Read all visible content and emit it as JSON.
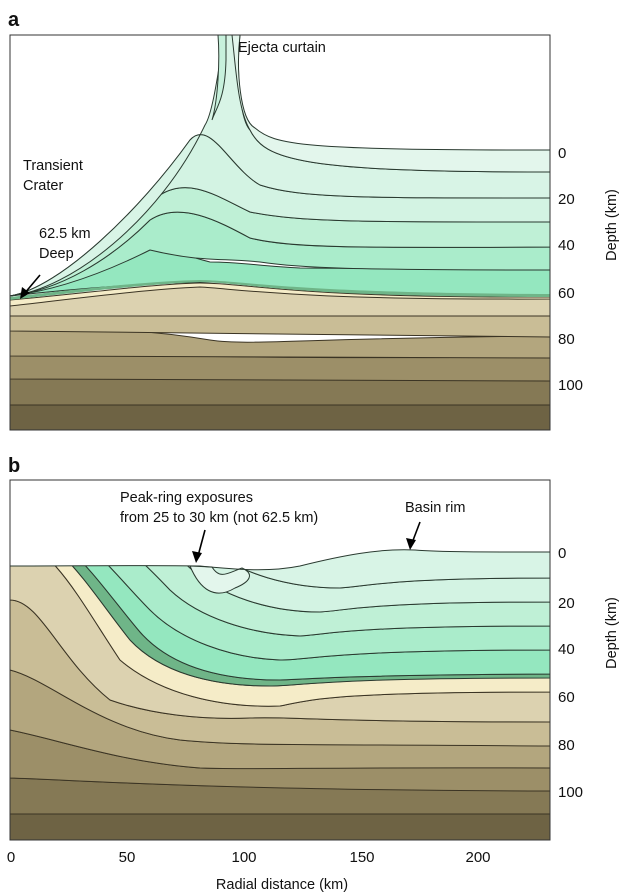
{
  "panel_a": {
    "letter": "a",
    "annotations": {
      "ejecta_curtain": "Ejecta curtain",
      "transient_line1": "Transient",
      "transient_line2": "Crater",
      "depth_line1": "62.5 km",
      "depth_line2": "Deep"
    }
  },
  "panel_b": {
    "letter": "b",
    "annotations": {
      "peak_ring_line1": "Peak-ring exposures",
      "peak_ring_line2": "from 25 to 30 km (not 62.5 km)",
      "basin_rim": "Basin rim"
    }
  },
  "depth_axis": {
    "title": "Depth (km)",
    "ticks": [
      "0",
      "20",
      "40",
      "60",
      "80",
      "100"
    ]
  },
  "x_axis": {
    "title": "Radial distance (km)",
    "ticks": [
      "0",
      "50",
      "100",
      "150",
      "200"
    ]
  },
  "colors": {
    "green_layers": [
      "#e3f6ec",
      "#d3f3e3",
      "#bff0d6",
      "#aaeccb",
      "#94e7bf"
    ],
    "marker_band": "#6fb588",
    "cream_layer": "#f5ecc8",
    "brown_layers": [
      "#dcd2b0",
      "#c9bd96",
      "#b3a67e",
      "#9c8f68",
      "#857955",
      "#6e6344"
    ]
  }
}
